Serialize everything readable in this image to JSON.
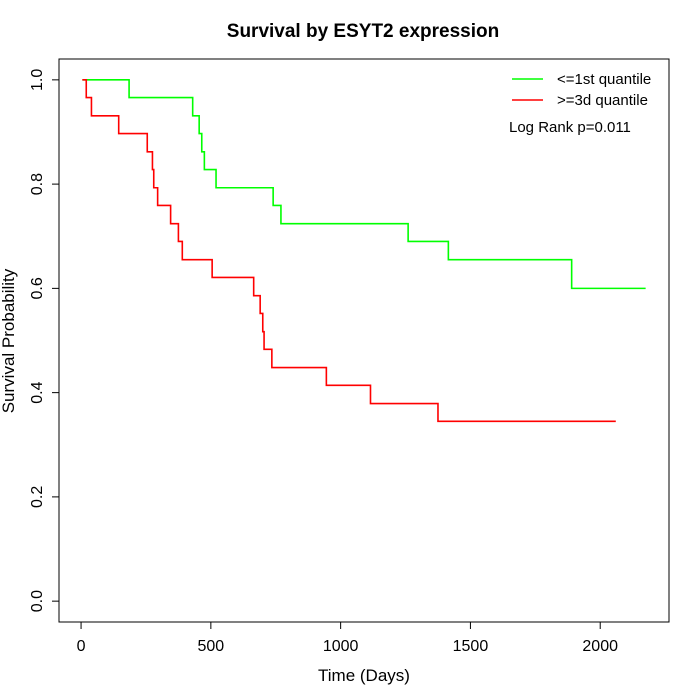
{
  "chart_data": {
    "type": "line",
    "title": "Survival by ESYT2 expression",
    "xlabel": "Time (Days)",
    "ylabel": "Survival Probability",
    "xlim": [
      -85,
      2265
    ],
    "ylim": [
      -0.04,
      1.04
    ],
    "x_ticks": [
      0,
      500,
      1000,
      1500,
      2000
    ],
    "y_ticks": [
      0.0,
      0.2,
      0.4,
      0.6,
      0.8,
      1.0
    ],
    "x_tick_labels": [
      "0",
      "500",
      "1000",
      "1500",
      "2000"
    ],
    "y_tick_labels": [
      "0.0",
      "0.2",
      "0.4",
      "0.6",
      "0.8",
      "1.0"
    ],
    "grid": false,
    "legend_position": "top-right",
    "annotation": "Log Rank p=0.011",
    "series": [
      {
        "name": "<=1st quantile",
        "color": "#00ff00",
        "steps": [
          [
            5,
            1.0
          ],
          [
            185,
            0.966
          ],
          [
            430,
            0.931
          ],
          [
            455,
            0.897
          ],
          [
            465,
            0.862
          ],
          [
            475,
            0.828
          ],
          [
            520,
            0.793
          ],
          [
            740,
            0.759
          ],
          [
            770,
            0.724
          ],
          [
            1260,
            0.69
          ],
          [
            1415,
            0.655
          ],
          [
            1890,
            0.6
          ],
          [
            2175,
            0.6
          ]
        ]
      },
      {
        "name": ">=3d quantile",
        "color": "#ff0000",
        "steps": [
          [
            5,
            1.0
          ],
          [
            20,
            0.966
          ],
          [
            40,
            0.931
          ],
          [
            145,
            0.897
          ],
          [
            255,
            0.862
          ],
          [
            275,
            0.828
          ],
          [
            280,
            0.793
          ],
          [
            295,
            0.759
          ],
          [
            345,
            0.724
          ],
          [
            375,
            0.69
          ],
          [
            390,
            0.655
          ],
          [
            505,
            0.621
          ],
          [
            665,
            0.586
          ],
          [
            690,
            0.552
          ],
          [
            700,
            0.517
          ],
          [
            705,
            0.483
          ],
          [
            735,
            0.448
          ],
          [
            945,
            0.414
          ],
          [
            1115,
            0.379
          ],
          [
            1375,
            0.345
          ],
          [
            2060,
            0.345
          ]
        ]
      }
    ]
  }
}
